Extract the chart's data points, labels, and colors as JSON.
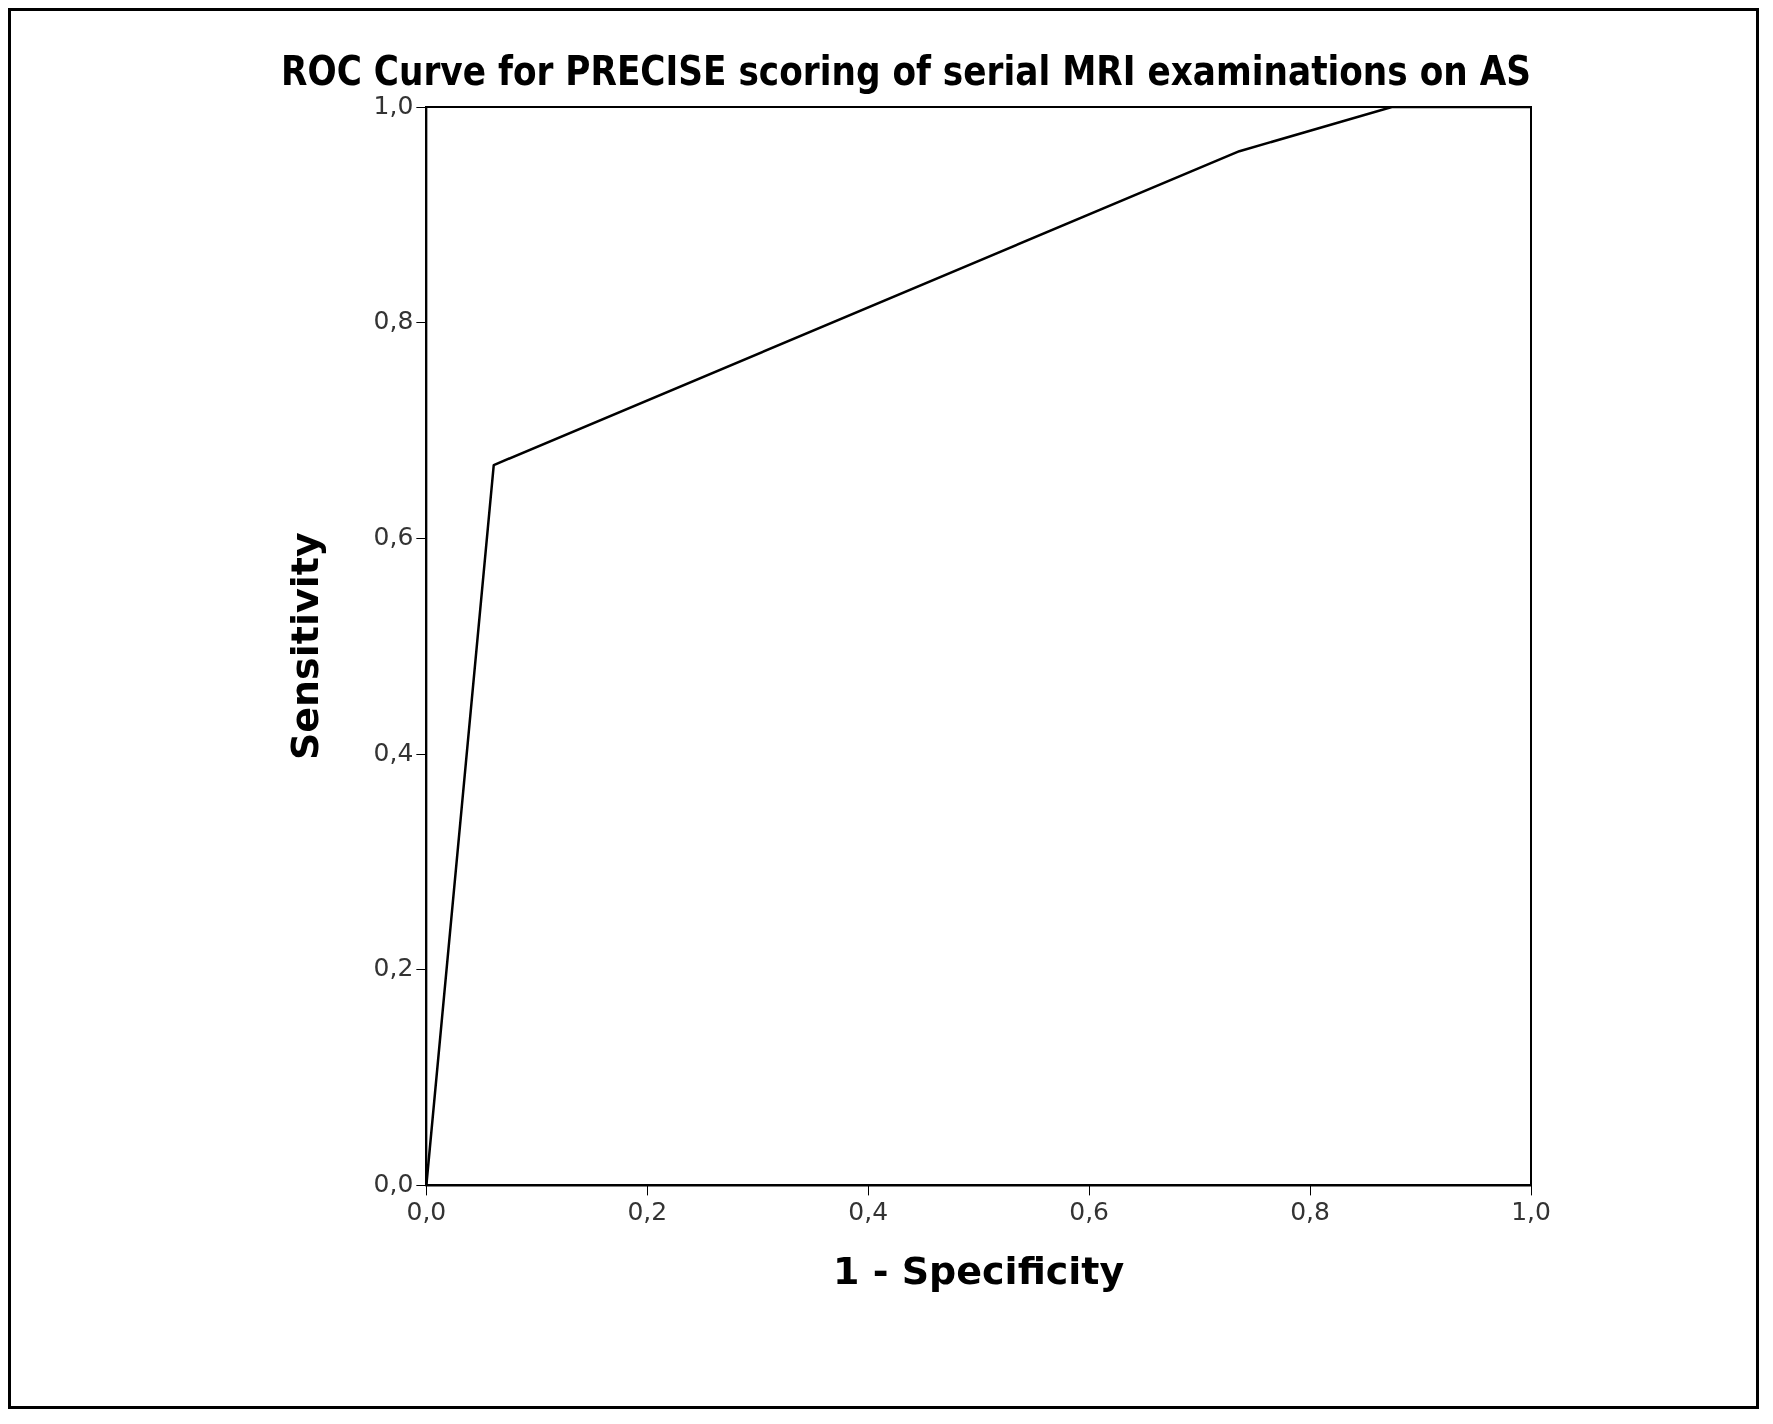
{
  "chart_data": {
    "type": "line",
    "title": "ROC Curve for PRECISE scoring of serial MRI examinations on AS",
    "xlabel": "1 - Specificity",
    "ylabel": "Sensitivity",
    "x": [
      0,
      0.061,
      0.736,
      0.874,
      1
    ],
    "series": [
      {
        "color": "#000000",
        "values": [
          0,
          0.668,
          0.959,
          1,
          1
        ]
      }
    ],
    "xlim": [
      0,
      1
    ],
    "ylim": [
      0,
      1
    ],
    "xticks": [
      {
        "value": 0,
        "label": "0,0"
      },
      {
        "value": 0.2,
        "label": "0,2"
      },
      {
        "value": 0.4,
        "label": "0,4"
      },
      {
        "value": 0.6,
        "label": "0,6"
      },
      {
        "value": 0.8,
        "label": "0,8"
      },
      {
        "value": 1,
        "label": "1,0"
      }
    ],
    "yticks": [
      {
        "value": 0,
        "label": "0,0"
      },
      {
        "value": 0.2,
        "label": "0,2"
      },
      {
        "value": 0.4,
        "label": "0,4"
      },
      {
        "value": 0.6,
        "label": "0,6"
      },
      {
        "value": 0.8,
        "label": "0,8"
      },
      {
        "value": 1,
        "label": "1,0"
      }
    ],
    "grid": false,
    "legend": false,
    "marker": "none",
    "line_style": "solid"
  }
}
